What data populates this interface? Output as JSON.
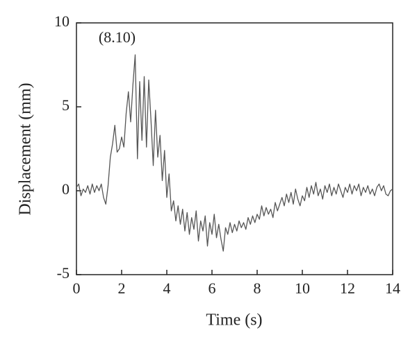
{
  "chart_data": {
    "type": "line",
    "xlabel": "Time (s)",
    "ylabel": "Displacement (mm)",
    "annotation": "(8.10)",
    "color": "#555555",
    "xlim": [
      0,
      14
    ],
    "xticks": [
      0,
      2,
      4,
      6,
      8,
      10,
      12,
      14
    ],
    "ylim": [
      -5,
      10
    ],
    "yticks": [
      -5,
      0,
      5,
      10
    ],
    "x": [
      0.0,
      0.1,
      0.2,
      0.3,
      0.4,
      0.5,
      0.6,
      0.7,
      0.8,
      0.9,
      1.0,
      1.1,
      1.2,
      1.3,
      1.4,
      1.5,
      1.6,
      1.7,
      1.8,
      1.9,
      2.0,
      2.1,
      2.2,
      2.3,
      2.4,
      2.5,
      2.6,
      2.7,
      2.8,
      2.9,
      3.0,
      3.1,
      3.2,
      3.3,
      3.4,
      3.5,
      3.6,
      3.7,
      3.8,
      3.9,
      4.0,
      4.1,
      4.2,
      4.3,
      4.4,
      4.5,
      4.6,
      4.7,
      4.8,
      4.9,
      5.0,
      5.1,
      5.2,
      5.3,
      5.4,
      5.5,
      5.6,
      5.7,
      5.8,
      5.9,
      6.0,
      6.1,
      6.2,
      6.3,
      6.4,
      6.5,
      6.6,
      6.7,
      6.8,
      6.9,
      7.0,
      7.1,
      7.2,
      7.3,
      7.4,
      7.5,
      7.6,
      7.7,
      7.8,
      7.9,
      8.0,
      8.1,
      8.2,
      8.3,
      8.4,
      8.5,
      8.6,
      8.7,
      8.8,
      8.9,
      9.0,
      9.1,
      9.2,
      9.3,
      9.4,
      9.5,
      9.6,
      9.7,
      9.8,
      9.9,
      10.0,
      10.1,
      10.2,
      10.3,
      10.4,
      10.5,
      10.6,
      10.7,
      10.8,
      10.9,
      11.0,
      11.1,
      11.2,
      11.3,
      11.4,
      11.5,
      11.6,
      11.7,
      11.8,
      11.9,
      12.0,
      12.1,
      12.2,
      12.3,
      12.4,
      12.5,
      12.6,
      12.7,
      12.8,
      12.9,
      13.0,
      13.1,
      13.2,
      13.3,
      13.4,
      13.5,
      13.6,
      13.7,
      13.8,
      13.9,
      14.0
    ],
    "values": [
      0.2,
      0.4,
      -0.3,
      0.1,
      -0.1,
      0.3,
      -0.2,
      0.4,
      -0.1,
      0.3,
      0.0,
      0.4,
      -0.4,
      -0.8,
      0.3,
      2.0,
      2.8,
      3.9,
      2.3,
      2.5,
      3.2,
      2.6,
      4.6,
      5.9,
      4.1,
      6.3,
      8.1,
      1.9,
      6.5,
      3.0,
      6.8,
      2.6,
      6.6,
      4.2,
      1.5,
      4.8,
      2.0,
      3.3,
      0.6,
      2.4,
      -0.4,
      1.0,
      -1.2,
      -0.6,
      -1.8,
      -0.9,
      -2.0,
      -1.1,
      -2.4,
      -1.3,
      -2.6,
      -1.6,
      -2.3,
      -1.2,
      -3.0,
      -1.8,
      -2.4,
      -1.5,
      -3.3,
      -1.9,
      -2.6,
      -1.4,
      -2.8,
      -2.0,
      -2.9,
      -3.6,
      -2.2,
      -2.6,
      -1.9,
      -2.5,
      -2.0,
      -2.4,
      -1.8,
      -2.2,
      -1.9,
      -2.3,
      -1.6,
      -2.0,
      -1.5,
      -1.9,
      -1.4,
      -1.7,
      -0.9,
      -1.5,
      -1.0,
      -1.4,
      -1.1,
      -1.6,
      -0.7,
      -1.2,
      -0.8,
      -0.4,
      -0.9,
      -0.2,
      -0.7,
      -0.1,
      -0.8,
      0.1,
      -0.5,
      -0.9,
      -0.3,
      -0.6,
      0.2,
      -0.4,
      0.3,
      -0.2,
      0.5,
      -0.3,
      0.1,
      -0.5,
      0.3,
      -0.1,
      0.4,
      -0.3,
      0.2,
      -0.2,
      0.4,
      0.0,
      -0.4,
      0.2,
      -0.1,
      0.4,
      -0.2,
      0.3,
      0.0,
      0.4,
      -0.3,
      0.2,
      -0.1,
      0.3,
      -0.2,
      0.1,
      -0.3,
      0.2,
      0.4,
      0.0,
      0.3,
      -0.2,
      -0.3,
      0.0,
      0.1
    ]
  }
}
